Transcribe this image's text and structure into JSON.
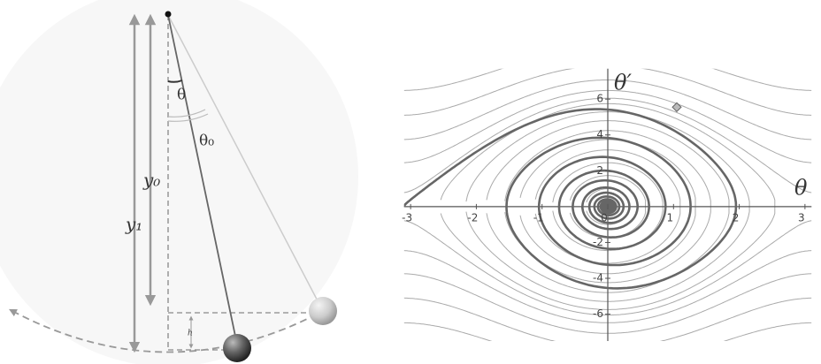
{
  "pendulum": {
    "labels": {
      "theta": "θ",
      "theta0": "θ₀",
      "y0": "y₀",
      "y1": "y₁",
      "h": "h"
    }
  },
  "phase_plot": {
    "x_label": "θ",
    "y_label": "θ′",
    "xlim": [
      -3.1,
      3.1
    ],
    "ylim": [
      -7.5,
      7.7
    ],
    "xticks": [
      -3,
      -2,
      -1,
      0,
      1,
      2,
      3
    ],
    "yticks": [
      -6,
      -4,
      -2,
      2,
      4,
      6
    ]
  }
}
